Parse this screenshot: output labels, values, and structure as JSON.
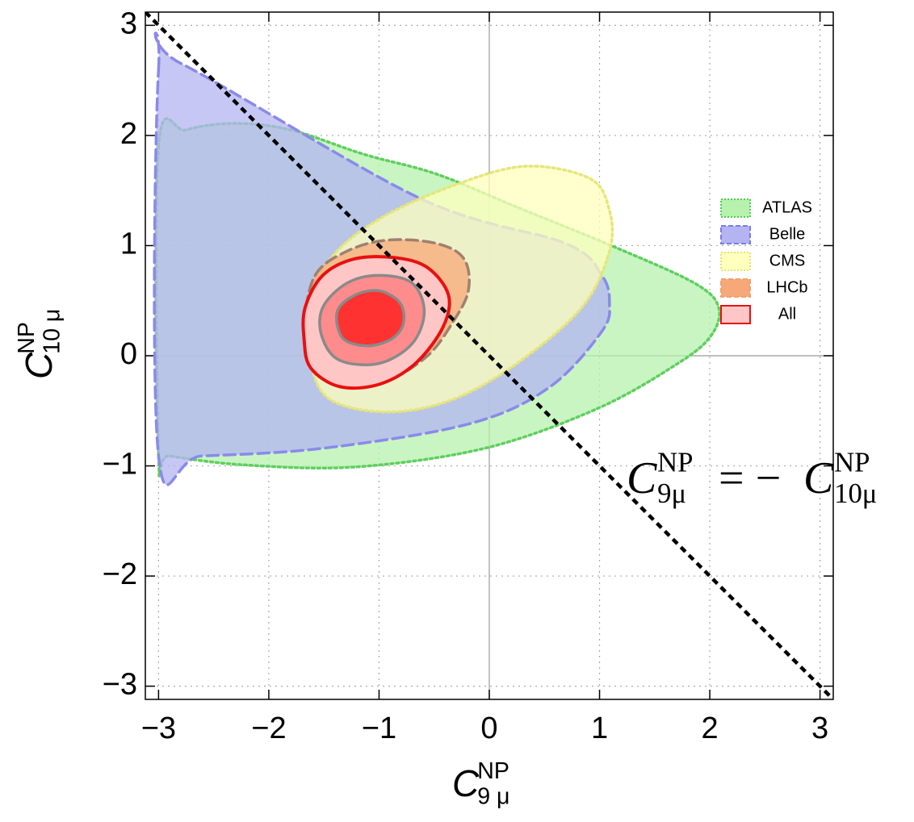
{
  "chart_data": {
    "type": "region",
    "x_label": {
      "base": "C",
      "sup": "NP",
      "sub": "9 μ"
    },
    "y_label": {
      "base": "C",
      "sup": "NP",
      "sub": "10 μ"
    },
    "annotation": {
      "lhs": {
        "base": "C",
        "sup": "NP",
        "sub": "9μ"
      },
      "op": "= −",
      "rhs": {
        "base": "C",
        "sup": "NP",
        "sub": "10μ"
      }
    },
    "xlim": [
      -3.12,
      3.12
    ],
    "ylim": [
      -3.12,
      3.12
    ],
    "xticks": [
      {
        "value": -3,
        "label": "−3"
      },
      {
        "value": -2,
        "label": "−2"
      },
      {
        "value": -1,
        "label": "−1"
      },
      0,
      1,
      2,
      3
    ],
    "yticks": [
      {
        "value": -3,
        "label": "−3"
      },
      {
        "value": -2,
        "label": "−2"
      },
      {
        "value": -1,
        "label": "−1"
      },
      0,
      1,
      2,
      3
    ],
    "grid": true,
    "legend": "center right",
    "reference_line": {
      "slope": -1,
      "intercept": 0
    },
    "series": [
      {
        "name": "ATLAS",
        "color": "#4fcf4f",
        "line_style": "dotted",
        "contours": [
          {
            "fill": "#b6f2ad",
            "stroke": "#5fcf5f",
            "x": [
              -3,
              -2.75,
              -2.31,
              -1.8,
              -1.14,
              -0.48,
              0.25,
              1.13,
              1.86,
              2.08,
              2.01,
              1.71,
              0.98,
              -0.04,
              -1.22,
              -2.24,
              -2.9,
              -3
            ],
            "y": [
              1.9,
              2.05,
              2.11,
              2.05,
              1.83,
              1.65,
              1.35,
              0.99,
              0.66,
              0.44,
              0.18,
              -0.07,
              -0.48,
              -0.84,
              -1.01,
              -0.99,
              -0.91,
              -0.88
            ]
          }
        ]
      },
      {
        "name": "Belle",
        "color": "#7b7bea",
        "line_style": "dashed",
        "contours": [
          {
            "fill": "#b4b4f2",
            "stroke": "#8a8aea",
            "x": [
              -3,
              -2.79,
              -0.63,
              0.69,
              1.02,
              1.09,
              1.02,
              0.54,
              -0.19,
              -1.51,
              -2.61,
              -3
            ],
            "y": [
              2.6,
              2.65,
              1.43,
              1.02,
              0.73,
              0.48,
              0.22,
              -0.29,
              -0.62,
              -0.84,
              -0.91,
              -0.91
            ]
          }
        ]
      },
      {
        "name": "CMS",
        "color": "#e3e36a",
        "line_style": "dotted",
        "contours": [
          {
            "fill": "#ffffbe",
            "stroke": "#e6e67a",
            "x": [
              -1.66,
              -1.44,
              -1,
              -0.34,
              0.32,
              0.91,
              1.09,
              1.09,
              0.84,
              0.25,
              -0.34,
              -0.92,
              -1.44,
              -1.62
            ],
            "y": [
              0.4,
              0.88,
              1.24,
              1.54,
              1.72,
              1.61,
              1.32,
              0.95,
              0.44,
              -0.07,
              -0.4,
              -0.51,
              -0.4,
              -0.07
            ]
          }
        ]
      },
      {
        "name": "LHCb",
        "color": "#f3a06e",
        "line_style": "dashed",
        "contours": [
          {
            "fill": "#f7a878",
            "stroke": "#a08070",
            "x": [
              -1.58,
              -1.29,
              -0.92,
              -0.48,
              -0.23,
              -0.19,
              -0.34,
              -0.56,
              -0.92,
              -1.29,
              -1.58,
              -1.67
            ],
            "y": [
              0.73,
              0.95,
              1.05,
              1.02,
              0.88,
              0.59,
              0.29,
              0,
              -0.22,
              -0.23,
              -0.07,
              0.29
            ]
          }
        ]
      },
      {
        "name": "All",
        "color": "#e81010",
        "line_style": "solid",
        "contours": [
          {
            "fill": "#ffc6c6",
            "stroke": "#e81010",
            "x": [
              -1.67,
              -1.51,
              -1.22,
              -0.85,
              -0.56,
              -0.37,
              -0.42,
              -0.67,
              -1,
              -1.36,
              -1.62,
              -1.68
            ],
            "y": [
              0.44,
              0.73,
              0.88,
              0.89,
              0.8,
              0.55,
              0.26,
              -0.07,
              -0.26,
              -0.28,
              -0.11,
              0.15
            ]
          },
          {
            "fill": "#ff8c8c",
            "stroke": "#8a8a8a",
            "x": [
              -1.51,
              -1.29,
              -1,
              -0.7,
              -0.59,
              -0.7,
              -1,
              -1.36,
              -1.52
            ],
            "y": [
              0.44,
              0.66,
              0.73,
              0.66,
              0.4,
              0.11,
              -0.07,
              -0.04,
              0.18
            ]
          },
          {
            "fill": "#ff3232",
            "stroke": "#8a8a8a",
            "x": [
              -1.38,
              -1.22,
              -1,
              -0.81,
              -0.78,
              -0.89,
              -1.11,
              -1.33
            ],
            "y": [
              0.4,
              0.55,
              0.59,
              0.48,
              0.29,
              0.15,
              0.09,
              0.16
            ]
          }
        ]
      }
    ]
  }
}
